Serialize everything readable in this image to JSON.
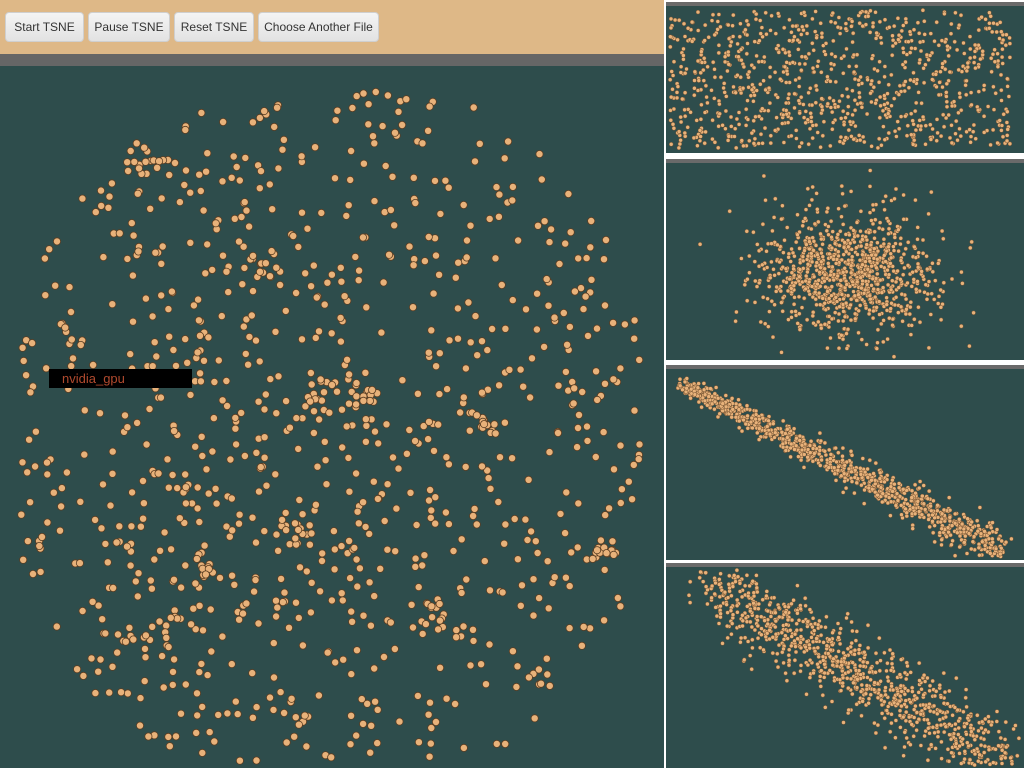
{
  "toolbar": {
    "start_label": "Start TSNE",
    "pause_label": "Pause TSNE",
    "reset_label": "Reset TSNE",
    "choose_label": "Choose Another File"
  },
  "tooltip": {
    "label": "nvidia_gpu"
  },
  "colors": {
    "background": "#2e4d4c",
    "toolbar": "#deb887",
    "point_fill": "#e8b27a",
    "point_stroke": "#5a3d22",
    "divider": "#666666"
  }
}
